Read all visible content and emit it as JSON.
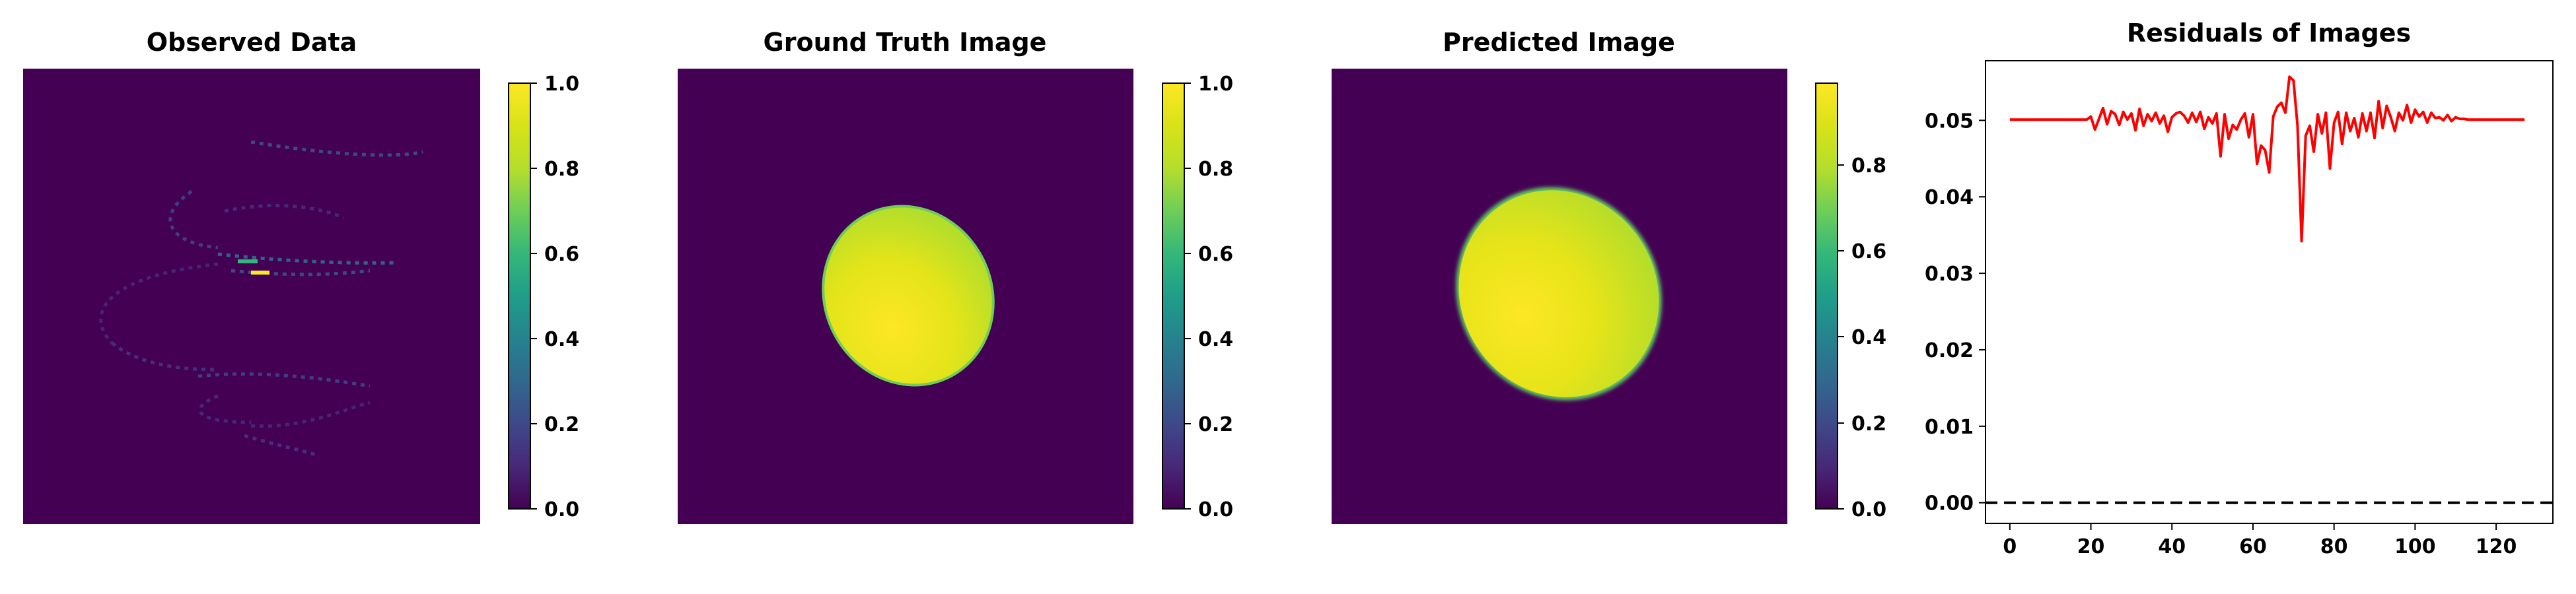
{
  "chart_data": [
    {
      "type": "heatmap",
      "title": "Observed Data",
      "colormap": "viridis",
      "colorbar": {
        "range": [
          0.0,
          1.0
        ],
        "ticks": [
          "0.0",
          "0.2",
          "0.4",
          "0.6",
          "0.8",
          "1.0"
        ]
      },
      "background_value": 0.0,
      "content": "sparse helical sampling traces with low values, one bright saturated segment near center (value ~1.0)"
    },
    {
      "type": "heatmap",
      "title": "Ground Truth Image",
      "colormap": "viridis",
      "colorbar": {
        "range": [
          0.0,
          1.0
        ],
        "ticks": [
          "0.0",
          "0.2",
          "0.4",
          "0.6",
          "0.8",
          "1.0"
        ]
      },
      "background_value": 0.0,
      "content": "single tilted ellipse, values ~0.85-1.0, brighter toward left, edge ~0.6"
    },
    {
      "type": "heatmap",
      "title": "Predicted Image",
      "colormap": "viridis",
      "colorbar": {
        "range": [
          0.0,
          0.99
        ],
        "ticks": [
          "0.0",
          "0.2",
          "0.4",
          "0.6",
          "0.8"
        ]
      },
      "background_value": 0.0,
      "content": "single tilted ellipse, slightly larger and blurrier than ground truth, values ~0.8-0.98"
    },
    {
      "type": "line",
      "title": "Residuals of Images",
      "xlabel": "",
      "ylabel": "",
      "xlim": [
        -6,
        134
      ],
      "ylim": [
        -0.0027,
        0.0578
      ],
      "xticks": [
        "0",
        "20",
        "40",
        "60",
        "80",
        "100",
        "120"
      ],
      "yticks": [
        "0.00",
        "0.01",
        "0.02",
        "0.03",
        "0.04",
        "0.05"
      ],
      "grid": false,
      "reference_line": {
        "y": 0.0,
        "style": "dashed",
        "color": "#000000"
      },
      "series": [
        {
          "color": "#ff0000",
          "x": [
            0,
            1,
            2,
            3,
            4,
            5,
            6,
            7,
            8,
            9,
            10,
            11,
            12,
            13,
            14,
            15,
            16,
            17,
            18,
            19,
            20,
            21,
            22,
            23,
            24,
            25,
            26,
            27,
            28,
            29,
            30,
            31,
            32,
            33,
            34,
            35,
            36,
            37,
            38,
            39,
            40,
            41,
            42,
            43,
            44,
            45,
            46,
            47,
            48,
            49,
            50,
            51,
            52,
            53,
            54,
            55,
            56,
            57,
            58,
            59,
            60,
            61,
            62,
            63,
            64,
            65,
            66,
            67,
            68,
            69,
            70,
            71,
            72,
            73,
            74,
            75,
            76,
            77,
            78,
            79,
            80,
            81,
            82,
            83,
            84,
            85,
            86,
            87,
            88,
            89,
            90,
            91,
            92,
            93,
            94,
            95,
            96,
            97,
            98,
            99,
            100,
            101,
            102,
            103,
            104,
            105,
            106,
            107,
            108,
            109,
            110,
            111,
            112,
            113,
            114,
            115,
            116,
            117,
            118,
            119,
            120,
            121,
            122,
            123,
            124,
            125,
            126,
            127
          ],
          "y": [
            0.0501,
            0.0501,
            0.0501,
            0.0501,
            0.0501,
            0.0501,
            0.0501,
            0.0501,
            0.0501,
            0.0501,
            0.0501,
            0.0501,
            0.0501,
            0.0501,
            0.0501,
            0.0501,
            0.0501,
            0.0501,
            0.0501,
            0.0501,
            0.0505,
            0.0488,
            0.0502,
            0.0516,
            0.0495,
            0.0512,
            0.0508,
            0.0494,
            0.0511,
            0.0501,
            0.0509,
            0.0487,
            0.0515,
            0.0493,
            0.0508,
            0.0499,
            0.051,
            0.0496,
            0.0506,
            0.0485,
            0.0504,
            0.0509,
            0.0511,
            0.0506,
            0.0497,
            0.051,
            0.0498,
            0.0511,
            0.0489,
            0.0504,
            0.0496,
            0.0509,
            0.0453,
            0.0508,
            0.0476,
            0.0494,
            0.0488,
            0.0501,
            0.0509,
            0.0478,
            0.0508,
            0.0443,
            0.0467,
            0.0461,
            0.0432,
            0.0505,
            0.0518,
            0.0523,
            0.051,
            0.0557,
            0.0552,
            0.0493,
            0.0342,
            0.048,
            0.0493,
            0.0459,
            0.0508,
            0.0483,
            0.051,
            0.0437,
            0.0497,
            0.0511,
            0.0469,
            0.051,
            0.0486,
            0.0503,
            0.0478,
            0.0509,
            0.0486,
            0.051,
            0.0477,
            0.0525,
            0.049,
            0.0519,
            0.0504,
            0.0486,
            0.051,
            0.05,
            0.052,
            0.0497,
            0.0514,
            0.0505,
            0.0511,
            0.0497,
            0.051,
            0.0503,
            0.0504,
            0.05,
            0.0507,
            0.0499,
            0.0504,
            0.0502,
            0.0502,
            0.0501,
            0.0501,
            0.0501,
            0.0501,
            0.0501,
            0.0501,
            0.0501,
            0.0501,
            0.0501,
            0.0501,
            0.0501,
            0.0501,
            0.0501,
            0.0501,
            0.0501
          ]
        }
      ]
    }
  ]
}
